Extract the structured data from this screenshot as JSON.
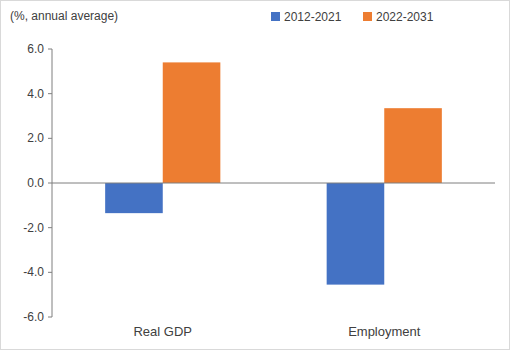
{
  "chart_data": {
    "type": "bar",
    "ylabel": "(%, annual average)",
    "categories": [
      "Real GDP",
      "Employment"
    ],
    "series": [
      {
        "name": "2012-2021",
        "color": "#4472c4",
        "values": [
          -1.35,
          -4.55
        ]
      },
      {
        "name": "2022-2031",
        "color": "#ed7d31",
        "values": [
          5.4,
          3.35
        ]
      }
    ],
    "ylim": [
      -6,
      6
    ],
    "yticks": [
      {
        "value": -6,
        "label": "-6.0"
      },
      {
        "value": -4,
        "label": "-4.0"
      },
      {
        "value": -2,
        "label": "-2.0"
      },
      {
        "value": 0,
        "label": "0.0"
      },
      {
        "value": 2,
        "label": "2.0"
      },
      {
        "value": 4,
        "label": "4.0"
      },
      {
        "value": 6,
        "label": "6.0"
      }
    ],
    "grid": false,
    "legend": "top-right"
  }
}
